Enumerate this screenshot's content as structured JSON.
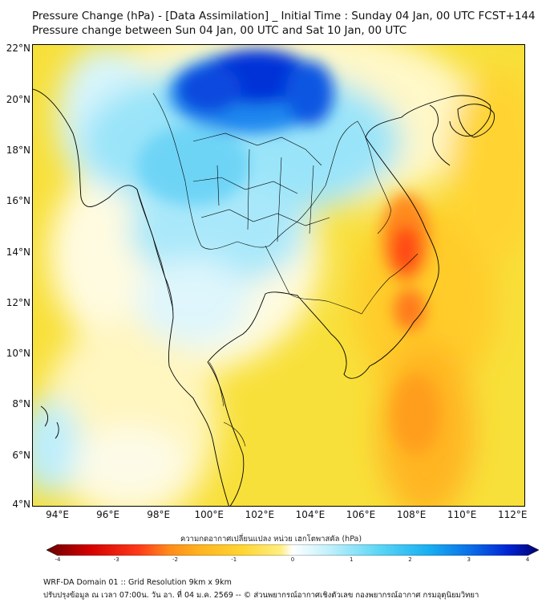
{
  "title": {
    "line1": "Pressure Change (hPa) - [Data Assimilation] _ Initial Time : Sunday 04 Jan, 00 UTC FCST+144",
    "line2": "Pressure change between Sun 04 Jan, 00 UTC and Sat 10 Jan, 00 UTC"
  },
  "map": {
    "lon_range": [
      93,
      112.5
    ],
    "lat_range": [
      4,
      22.2
    ],
    "lat_labels": [
      "22°N",
      "20°N",
      "18°N",
      "16°N",
      "14°N",
      "12°N",
      "10°N",
      "8°N",
      "6°N",
      "4°N"
    ],
    "lat_values": [
      22,
      20,
      18,
      16,
      14,
      12,
      10,
      8,
      6,
      4
    ],
    "lon_labels": [
      "94°E",
      "96°E",
      "98°E",
      "100°E",
      "102°E",
      "104°E",
      "106°E",
      "108°E",
      "110°E",
      "112°E"
    ],
    "lon_values": [
      94,
      96,
      98,
      100,
      102,
      104,
      106,
      108,
      110,
      112
    ],
    "background_color": "#f8e03a",
    "field_features": [
      {
        "name": "strong-fall-north",
        "lon": 101.8,
        "lat": 21.0,
        "value": 3.6
      },
      {
        "name": "fall-north-west",
        "lon": 99.8,
        "lat": 20.2,
        "value": 3.3
      },
      {
        "name": "fall-north-east",
        "lon": 103.8,
        "lat": 20.6,
        "value": 3.0
      },
      {
        "name": "fall-central",
        "lon": 100.8,
        "lat": 16.5,
        "value": 1.8
      },
      {
        "name": "fall-south-west",
        "lon": 93.6,
        "lat": 6.5,
        "value": 1.2
      },
      {
        "name": "rise-east-max",
        "lon": 107.8,
        "lat": 14.2,
        "value": -2.6
      },
      {
        "name": "rise-east-secondary",
        "lon": 108.0,
        "lat": 11.6,
        "value": -2.3
      },
      {
        "name": "rise-offshore-south",
        "lon": 108.2,
        "lat": 6.0,
        "value": -1.8
      }
    ]
  },
  "colorbar": {
    "title": "ความกดอากาศเปลี่ยนแปลง หน่วย เฮกโตพาสคัล (hPa)",
    "min": -4,
    "max": 4,
    "tick_labels": [
      "-4",
      "-3",
      "-2",
      "-1",
      "0",
      "1",
      "2",
      "3",
      "4"
    ],
    "tick_values": [
      -4,
      -3,
      -2,
      -1,
      0,
      1,
      2,
      3,
      4
    ],
    "stops": [
      {
        "v": -4,
        "c": "#6a0000"
      },
      {
        "v": -3.3,
        "c": "#d40000"
      },
      {
        "v": -2.5,
        "c": "#ff3a1a"
      },
      {
        "v": -2,
        "c": "#ff8c1a"
      },
      {
        "v": -1.5,
        "c": "#ffb41f"
      },
      {
        "v": -0.8,
        "c": "#ffd634"
      },
      {
        "v": -0.2,
        "c": "#ffee80"
      },
      {
        "v": 0,
        "c": "#ffffff"
      },
      {
        "v": 0.6,
        "c": "#bff0fb"
      },
      {
        "v": 1.4,
        "c": "#5cd6f6"
      },
      {
        "v": 2.2,
        "c": "#19b0f2"
      },
      {
        "v": 2.9,
        "c": "#0a6ee8"
      },
      {
        "v": 3.5,
        "c": "#0025d4"
      },
      {
        "v": 4,
        "c": "#000070"
      }
    ]
  },
  "footer": {
    "line1": "WRF-DA Domain 01 :: Grid Resolution 9km x 9km",
    "line2": "ปรับปรุงข้อมูล ณ เวลา 07:00น. วัน อา. ที่ 04 ม.ค. 2569 -- © ส่วนพยากรณ์อากาศเชิงตัวเลข กองพยากรณ์อากาศ กรมอุตุนิยมวิทยา"
  }
}
